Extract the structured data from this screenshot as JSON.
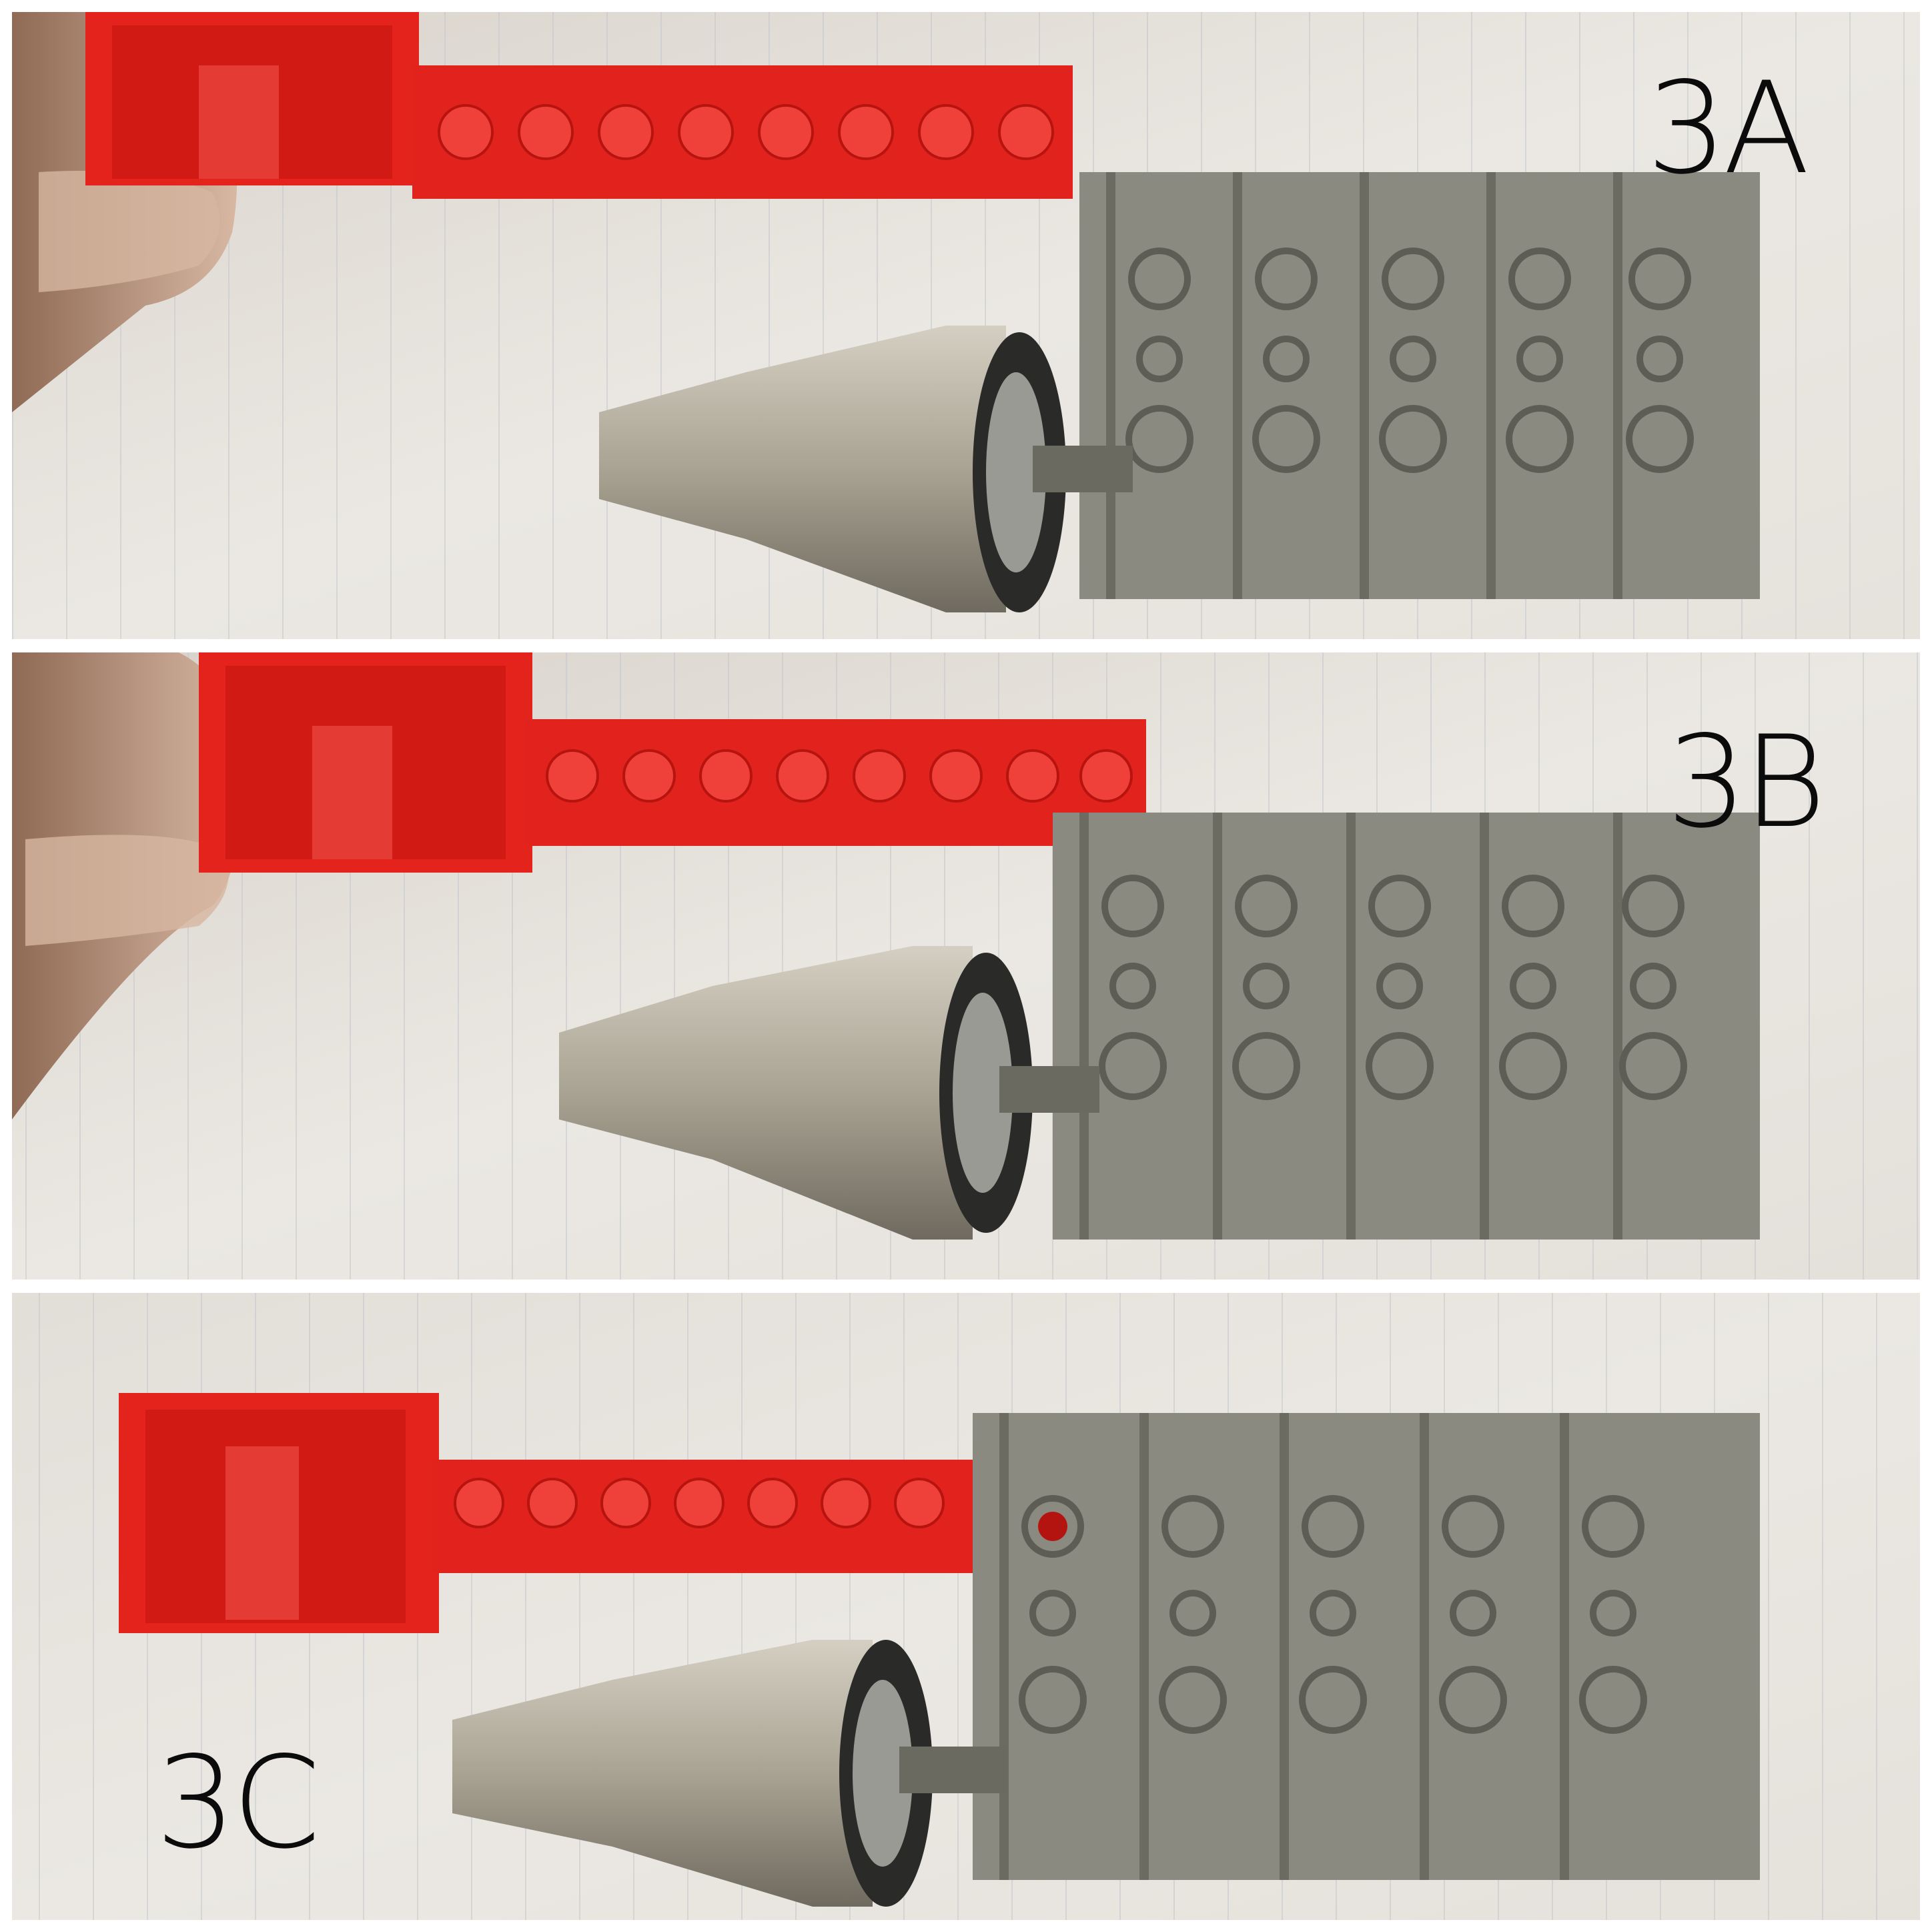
{
  "panels": [
    {
      "label": "3A"
    },
    {
      "label": "3B"
    },
    {
      "label": "3C"
    }
  ],
  "colors": {
    "paper": "#e9e6e1",
    "paper_shadow": "#cfcac3",
    "rule_line": "#b9c1cb",
    "red_brick": "#e5231d",
    "red_dark": "#b3140f",
    "gray_track": "#8a8a80",
    "gray_dark": "#5d5d55",
    "silver": "#b8b2a4",
    "silver_dark": "#7c776b",
    "skin": "#c9a48a",
    "label_ink": "#0b0b0b"
  }
}
